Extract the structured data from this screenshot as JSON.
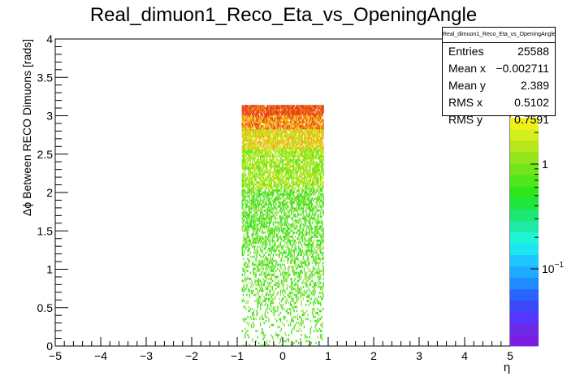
{
  "chart_data": {
    "type": "heatmap",
    "title": "Real_dimuon1_Reco_Eta_vs_OpeningAngle",
    "xlabel": "η",
    "ylabel": "Δϕ Between RECO Dimuons [rads]",
    "xlim": [
      -5,
      5
    ],
    "ylim": [
      0,
      4
    ],
    "x_ticks": [
      "−5",
      "−4",
      "−3",
      "−2",
      "−1",
      "0",
      "1",
      "2",
      "3",
      "4",
      "5"
    ],
    "y_ticks": [
      "0",
      "0.5",
      "1",
      "1.5",
      "2",
      "2.5",
      "3",
      "3.5",
      "4"
    ],
    "data_region": {
      "x": [
        -0.9,
        0.9
      ],
      "y": [
        0,
        3.14
      ]
    },
    "z_scale": "log",
    "z_ticks": [
      {
        "value": 0.1,
        "label": "10",
        "exp": "−1"
      },
      {
        "value": 1,
        "label": "1"
      }
    ],
    "colors": {
      "low": "#9ee04f",
      "mid": "#33e61f",
      "high": "#e5461e",
      "top": "#f2a51a"
    }
  },
  "stats": {
    "name": "Real_dimuon1_Reco_Eta_vs_OpeningAngle",
    "rows": [
      {
        "label": "Entries",
        "value": "25588"
      },
      {
        "label": "Mean x",
        "value": "−0.002711"
      },
      {
        "label": "Mean y",
        "value": "2.389"
      },
      {
        "label": "RMS x",
        "value": "0.5102"
      },
      {
        "label": "RMS y",
        "value": "0.7591"
      }
    ]
  }
}
